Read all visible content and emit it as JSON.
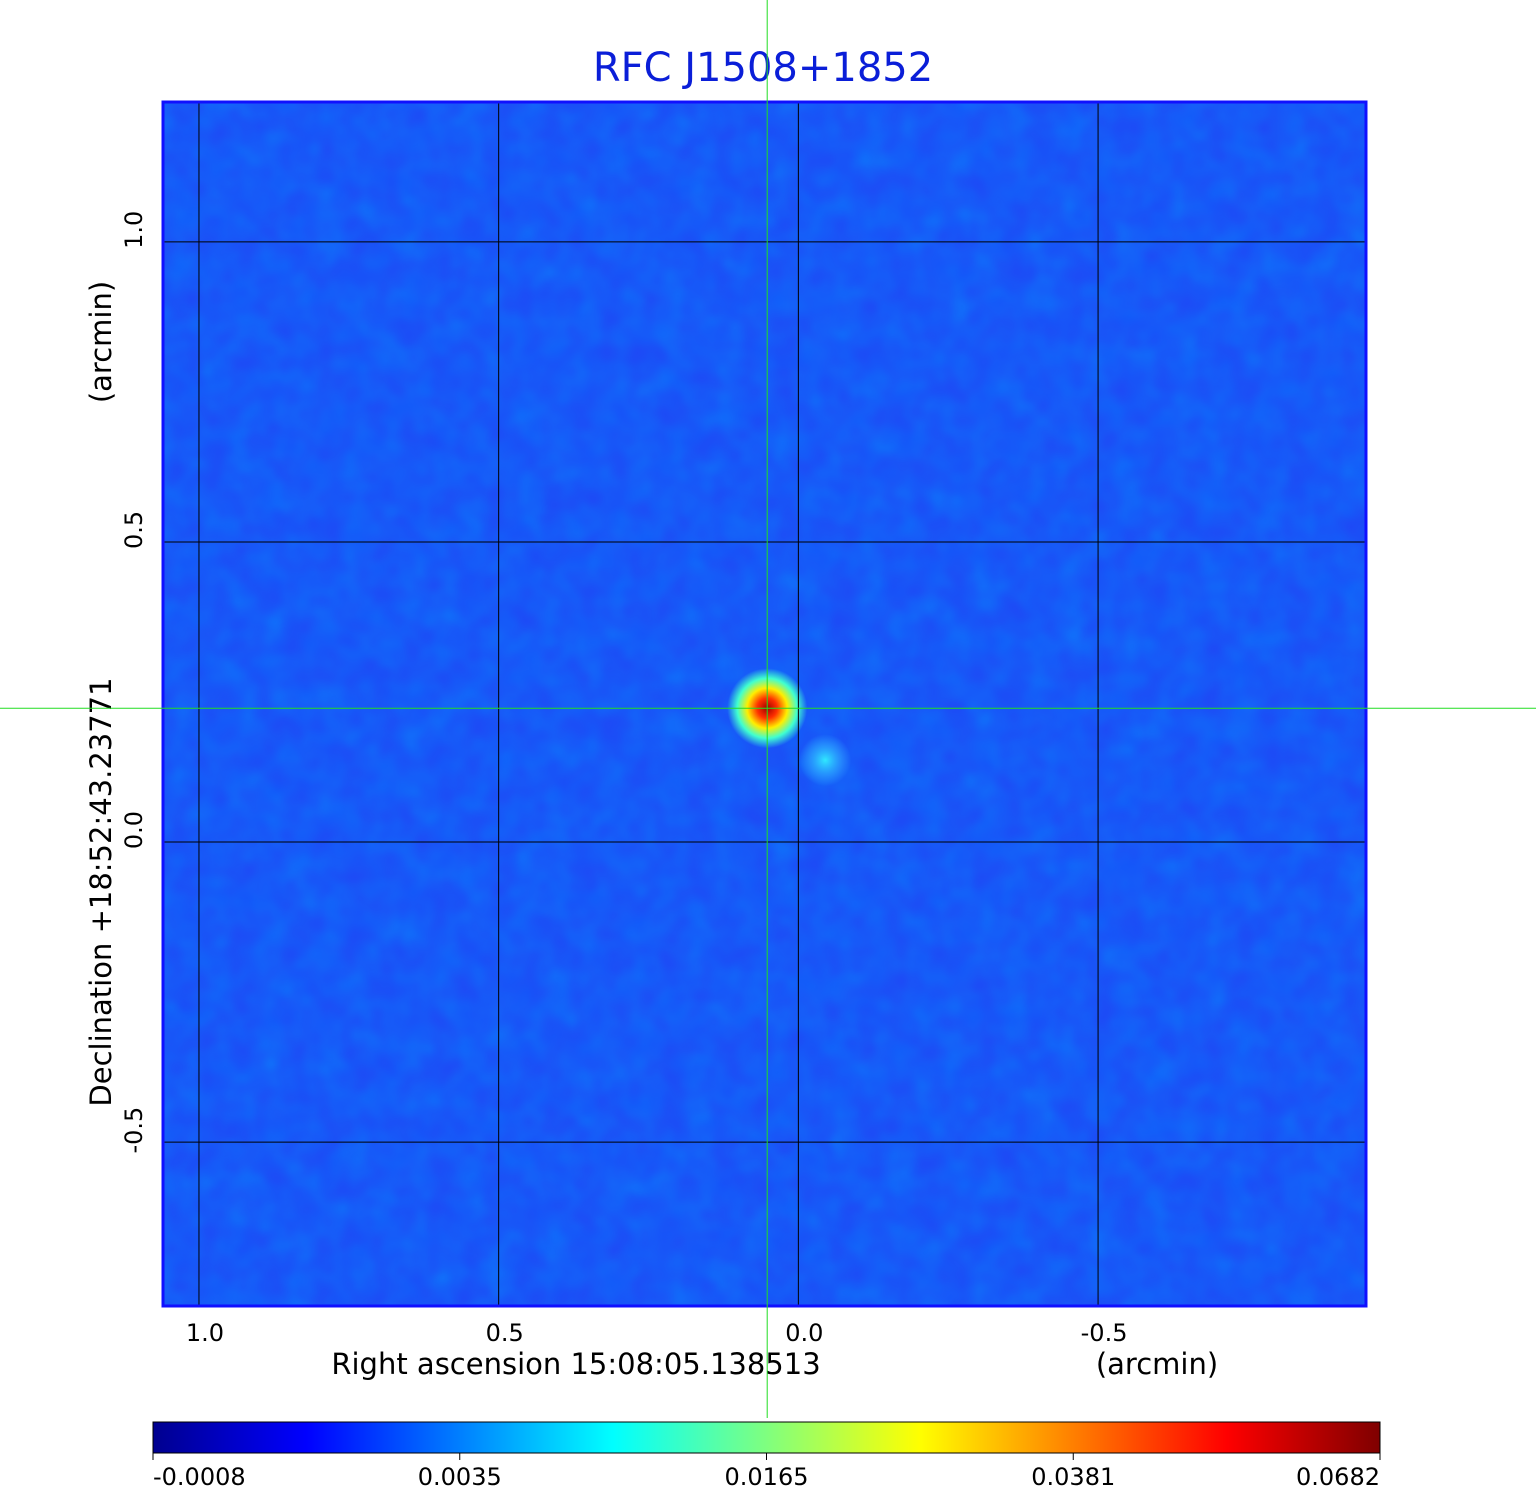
{
  "chart_data": {
    "type": "image",
    "title": "RFC J1508+1852",
    "x_label": "Right ascension  15:08:05.138513",
    "x_unit": "(arcmin)",
    "y_label": "Declination  +18:52:43.23771",
    "y_unit": "(arcmin)",
    "xlim": [
      1.06,
      -0.947
    ],
    "ylim": [
      -0.773,
      1.233
    ],
    "xticks": [
      {
        "value": 1,
        "label": "1.0"
      },
      0.5,
      {
        "value": 0,
        "label": "0.0"
      },
      -0.5
    ],
    "yticks": [
      {
        "value": -0.5,
        "label": "-0.5"
      },
      {
        "value": 0,
        "label": "0.0"
      },
      0.5,
      {
        "value": 1,
        "label": "1.0"
      }
    ],
    "grid": true,
    "crosshair": {
      "x": 0.052,
      "y": 0.223,
      "color": "#22dd22"
    },
    "colorbar": {
      "ticks": [
        -0.0008,
        0.0035,
        0.0165,
        0.0381,
        0.0682
      ],
      "colors": [
        "#00008f",
        "#0000ff",
        "#007fff",
        "#00ffff",
        "#7fff7f",
        "#ffff00",
        "#ff7f00",
        "#ff0000",
        "#7f0000"
      ]
    },
    "background_color": "#1f48f5"
  }
}
